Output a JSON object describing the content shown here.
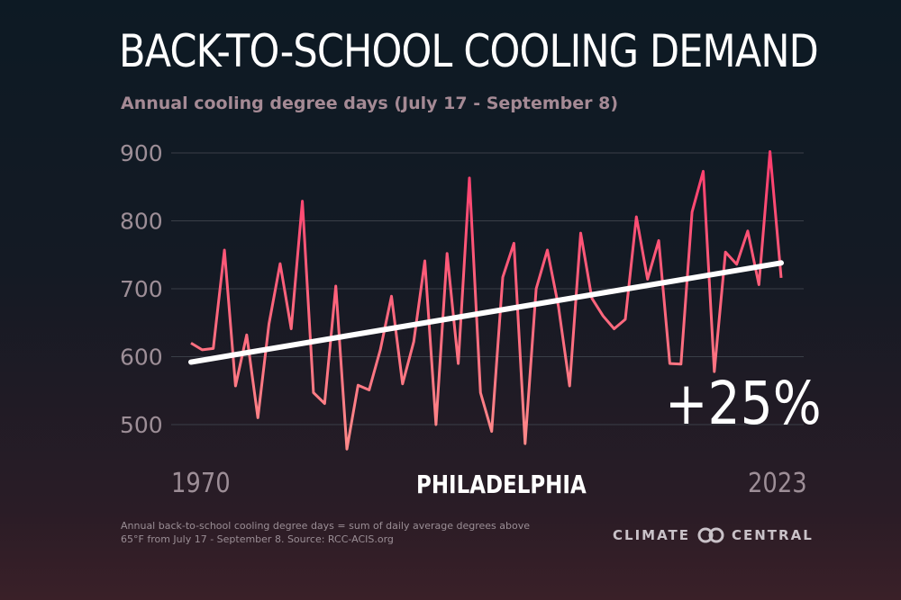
{
  "header": {
    "title": "BACK-TO-SCHOOL COOLING DEMAND",
    "subtitle": "Annual cooling degree days (July 17 - September 8)"
  },
  "labels": {
    "start_year": "1970",
    "end_year": "2023",
    "city": "PHILADELPHIA",
    "change": "+25%"
  },
  "footer": {
    "note_line1": "Annual back-to-school cooling degree days = sum of daily average degrees above",
    "note_line2": "65°F from July 17 - September 8. Source: RCC-ACIS.org",
    "brand_left": "CLIMATE",
    "brand_right": "CENTRAL",
    "logo_icon": "climate-central-rings-icon"
  },
  "colors": {
    "series_line": "#f0456a",
    "trend_line": "#ffffff",
    "grid": "#3a3f48"
  },
  "chart_data": {
    "type": "line",
    "title": "BACK-TO-SCHOOL COOLING DEMAND",
    "subtitle": "Annual cooling degree days (July 17 - September 8)",
    "xlabel": "",
    "ylabel": "",
    "xlim": [
      1970,
      2023
    ],
    "ylim": [
      460,
      910
    ],
    "yticks": [
      900,
      800,
      700,
      600,
      500
    ],
    "grid": true,
    "series": [
      {
        "name": "Philadelphia cooling degree days",
        "x": [
          1970,
          1971,
          1972,
          1973,
          1974,
          1975,
          1976,
          1977,
          1978,
          1979,
          1980,
          1981,
          1982,
          1983,
          1984,
          1985,
          1986,
          1987,
          1988,
          1989,
          1990,
          1991,
          1992,
          1993,
          1994,
          1995,
          1996,
          1997,
          1998,
          1999,
          2000,
          2001,
          2002,
          2003,
          2004,
          2005,
          2006,
          2007,
          2008,
          2009,
          2010,
          2011,
          2012,
          2013,
          2014,
          2015,
          2016,
          2017,
          2018,
          2019,
          2020,
          2021,
          2022,
          2023
        ],
        "values": [
          620,
          610,
          612,
          757,
          557,
          632,
          510,
          648,
          737,
          641,
          829,
          547,
          531,
          704,
          464,
          558,
          551,
          610,
          689,
          560,
          622,
          741,
          500,
          752,
          590,
          863,
          547,
          490,
          717,
          767,
          472,
          700,
          757,
          674,
          557,
          782,
          686,
          660,
          641,
          655,
          806,
          714,
          771,
          590,
          589,
          813,
          873,
          578,
          754,
          736,
          785,
          706,
          902,
          716
        ]
      }
    ],
    "trend": {
      "name": "Linear trend",
      "x": [
        1970,
        2023
      ],
      "values": [
        592,
        738
      ]
    }
  }
}
